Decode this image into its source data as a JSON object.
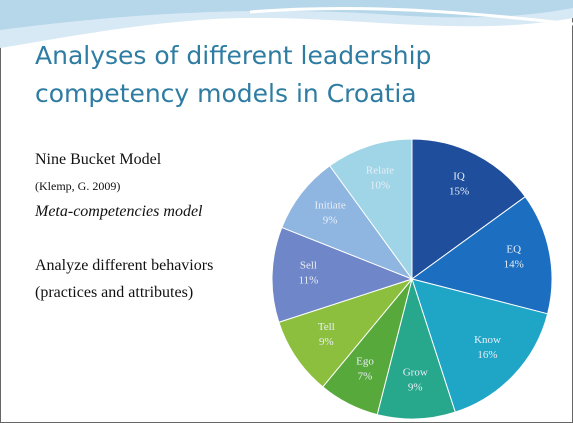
{
  "chart_data": {
    "type": "pie",
    "title": [
      "Analyses of different leadership",
      "competency models in Croatia"
    ],
    "annotations": [
      "Nine Bucket Model",
      "(Klemp, G. 2009)",
      "Meta-competencies model",
      "Analyze different behaviors",
      "(practices and attributes)"
    ],
    "categories": [
      "IQ",
      "EQ",
      "Know",
      "Grow",
      "Ego",
      "Tell",
      "Sell",
      "Initiate",
      "Relate"
    ],
    "values": [
      15,
      14,
      16,
      9,
      7,
      9,
      11,
      9,
      10
    ],
    "value_labels": [
      "15%",
      "14%",
      "16%",
      "9%",
      "7%",
      "9%",
      "11%",
      "9%",
      "10%"
    ],
    "colors": [
      "#1f4f9c",
      "#1c6fc0",
      "#1fa6c6",
      "#27a78b",
      "#58a93c",
      "#8dbf3f",
      "#6f86c8",
      "#8fb6e1",
      "#9fd5e6"
    ]
  }
}
